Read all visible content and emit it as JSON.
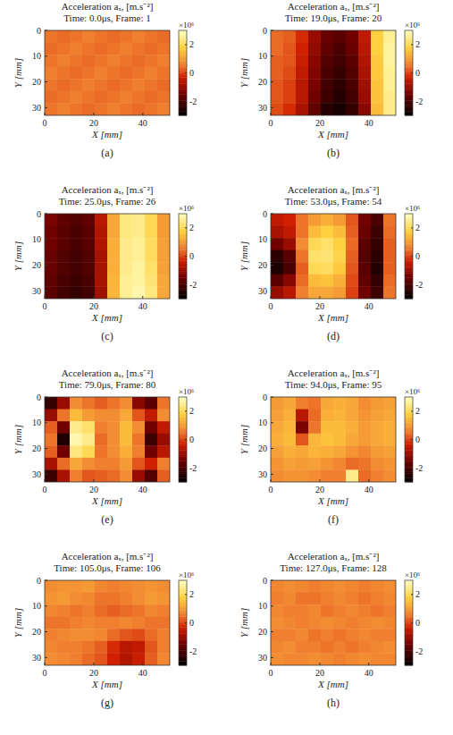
{
  "chart_data": [
    {
      "type": "heatmap",
      "title": "Acceleration aₓ, [m.s⁻²]",
      "subtitle": "Time: 0.0μs, Frame: 1",
      "caption": "(a)",
      "x_label": "X [mm]",
      "y_label": "Y [mm]",
      "xlim": [
        0,
        51
      ],
      "ylim": [
        0,
        33
      ],
      "xticks": [
        0,
        20,
        40
      ],
      "yticks": [
        0,
        10,
        20,
        30
      ],
      "colorbar": {
        "range": [
          -3,
          3
        ],
        "ticks": [
          -2,
          0,
          2
        ],
        "label": "×10⁶"
      },
      "cells": [
        [
          0.5,
          0.4,
          0.5,
          0.6,
          0.5,
          0.4,
          0.5,
          0.6,
          0.5,
          0.4
        ],
        [
          0.4,
          0.5,
          0.6,
          0.5,
          0.4,
          0.5,
          0.6,
          0.5,
          0.4,
          0.5
        ],
        [
          0.5,
          0.6,
          0.5,
          0.4,
          0.5,
          0.6,
          0.5,
          0.4,
          0.5,
          0.6
        ],
        [
          0.6,
          0.5,
          0.4,
          0.5,
          0.6,
          0.5,
          0.4,
          0.5,
          0.6,
          0.5
        ],
        [
          0.5,
          0.4,
          0.5,
          0.6,
          0.5,
          0.4,
          0.5,
          0.6,
          0.5,
          0.4
        ],
        [
          0.4,
          0.5,
          0.6,
          0.5,
          0.4,
          0.5,
          0.6,
          0.5,
          0.4,
          0.5
        ],
        [
          0.5,
          0.6,
          0.5,
          0.4,
          0.5,
          0.6,
          0.5,
          0.4,
          0.5,
          0.6
        ]
      ]
    },
    {
      "type": "heatmap",
      "title": "Acceleration aₓ, [m.s⁻²]",
      "subtitle": "Time: 19.0μs, Frame: 20",
      "caption": "(b)",
      "x_label": "X [mm]",
      "y_label": "Y [mm]",
      "xlim": [
        0,
        51
      ],
      "ylim": [
        0,
        33
      ],
      "xticks": [
        0,
        20,
        40
      ],
      "yticks": [
        0,
        10,
        20,
        30
      ],
      "colorbar": {
        "range": [
          -3,
          3
        ],
        "ticks": [
          -2,
          0,
          2
        ],
        "label": "×10⁶"
      },
      "cells": [
        [
          0.4,
          0.3,
          -0.2,
          -1.0,
          -1.6,
          -1.8,
          -1.5,
          -0.5,
          1.8,
          2.6
        ],
        [
          0.4,
          0.2,
          -0.3,
          -1.1,
          -1.7,
          -2.0,
          -1.6,
          -0.6,
          1.8,
          2.7
        ],
        [
          0.3,
          0.2,
          -0.4,
          -1.2,
          -1.9,
          -2.1,
          -1.8,
          -0.7,
          1.7,
          2.7
        ],
        [
          0.3,
          0.1,
          -0.5,
          -1.3,
          -2.0,
          -2.3,
          -1.9,
          -0.8,
          1.7,
          2.6
        ],
        [
          0.2,
          0.0,
          -0.6,
          -1.4,
          -2.1,
          -2.4,
          -2.0,
          -0.9,
          1.6,
          2.6
        ],
        [
          0.2,
          0.0,
          -0.6,
          -1.5,
          -2.2,
          -2.5,
          -2.1,
          -1.0,
          1.6,
          2.5
        ],
        [
          0.1,
          -0.2,
          -0.8,
          -1.7,
          -2.5,
          -2.7,
          -2.3,
          -1.2,
          1.5,
          2.5
        ]
      ]
    },
    {
      "type": "heatmap",
      "title": "Acceleration aₓ, [m.s⁻²]",
      "subtitle": "Time: 25.0μs, Frame: 26",
      "caption": "(c)",
      "x_label": "X [mm]",
      "y_label": "Y [mm]",
      "xlim": [
        0,
        51
      ],
      "ylim": [
        0,
        33
      ],
      "xticks": [
        0,
        20,
        40
      ],
      "yticks": [
        0,
        10,
        20,
        30
      ],
      "colorbar": {
        "range": [
          -3,
          3
        ],
        "ticks": [
          -2,
          0,
          2
        ],
        "label": "×10⁶"
      },
      "cells": [
        [
          -1.4,
          -1.7,
          -1.9,
          -1.7,
          -0.6,
          1.2,
          2.4,
          2.5,
          2.0,
          1.0
        ],
        [
          -1.5,
          -1.8,
          -2.0,
          -1.8,
          -0.7,
          1.2,
          2.4,
          2.5,
          2.0,
          1.0
        ],
        [
          -1.5,
          -1.8,
          -2.0,
          -1.8,
          -0.7,
          1.3,
          2.5,
          2.6,
          2.1,
          1.1
        ],
        [
          -1.6,
          -1.9,
          -2.1,
          -1.9,
          -0.8,
          1.3,
          2.5,
          2.6,
          2.1,
          1.1
        ],
        [
          -1.6,
          -1.9,
          -2.1,
          -1.9,
          -0.8,
          1.3,
          2.5,
          2.7,
          2.2,
          1.1
        ],
        [
          -1.7,
          -2.0,
          -2.2,
          -2.0,
          -0.8,
          1.4,
          2.6,
          2.7,
          2.3,
          1.2
        ],
        [
          -1.8,
          -2.1,
          -2.3,
          -2.1,
          -0.9,
          1.4,
          2.6,
          2.8,
          2.4,
          1.2
        ]
      ]
    },
    {
      "type": "heatmap",
      "title": "Acceleration aₓ, [m.s⁻²]",
      "subtitle": "Time: 53.0μs, Frame: 54",
      "caption": "(d)",
      "x_label": "X [mm]",
      "y_label": "Y [mm]",
      "xlim": [
        0,
        51
      ],
      "ylim": [
        0,
        33
      ],
      "xticks": [
        0,
        20,
        40
      ],
      "yticks": [
        0,
        10,
        20,
        30
      ],
      "colorbar": {
        "range": [
          -3,
          3
        ],
        "ticks": [
          -2,
          0,
          2
        ],
        "label": "×10⁶"
      },
      "cells": [
        [
          -0.5,
          -0.3,
          0.5,
          1.0,
          1.3,
          1.0,
          0.2,
          -1.5,
          -2.0,
          0.5
        ],
        [
          -0.8,
          -0.5,
          0.5,
          1.5,
          1.8,
          1.5,
          0.3,
          -1.6,
          -2.2,
          0.4
        ],
        [
          -1.5,
          -1.0,
          0.8,
          2.0,
          2.2,
          1.8,
          0.4,
          -1.8,
          -2.3,
          0.3
        ],
        [
          -2.4,
          -1.8,
          0.5,
          2.2,
          2.3,
          1.9,
          0.3,
          -1.9,
          -2.4,
          0.3
        ],
        [
          -2.6,
          -2.0,
          0.3,
          2.0,
          2.1,
          1.7,
          0.2,
          -1.8,
          -2.5,
          0.3
        ],
        [
          -1.8,
          -1.2,
          0.4,
          1.5,
          1.6,
          1.3,
          0.1,
          -1.7,
          -2.3,
          0.4
        ],
        [
          -1.0,
          -0.6,
          0.6,
          1.2,
          1.2,
          1.0,
          0.0,
          -1.5,
          -2.2,
          0.5
        ]
      ]
    },
    {
      "type": "heatmap",
      "title": "Acceleration aₓ, [m.s⁻²]",
      "subtitle": "Time: 79.0μs, Frame: 80",
      "caption": "(e)",
      "x_label": "X [mm]",
      "y_label": "Y [mm]",
      "xlim": [
        0,
        51
      ],
      "ylim": [
        0,
        33
      ],
      "xticks": [
        0,
        20,
        40
      ],
      "yticks": [
        0,
        10,
        20,
        30
      ],
      "colorbar": {
        "range": [
          -3,
          3
        ],
        "ticks": [
          -2,
          0,
          2
        ],
        "label": "×10⁶"
      },
      "cells": [
        [
          -2.3,
          -1.0,
          0.8,
          0.5,
          0.3,
          0.5,
          0.8,
          -1.2,
          -1.8,
          0.5
        ],
        [
          -1.0,
          0.5,
          1.5,
          1.0,
          0.8,
          0.8,
          1.2,
          0.2,
          -0.5,
          0.8
        ],
        [
          0.3,
          -1.5,
          2.5,
          2.2,
          0.6,
          0.8,
          1.5,
          0.8,
          -1.5,
          -0.5
        ],
        [
          0.5,
          -2.6,
          2.8,
          2.5,
          0.4,
          0.8,
          1.5,
          0.5,
          -2.2,
          -1.0
        ],
        [
          0.3,
          -1.5,
          2.4,
          2.0,
          0.5,
          0.8,
          1.3,
          0.6,
          -1.5,
          -0.6
        ],
        [
          -0.8,
          0.4,
          1.2,
          0.8,
          0.6,
          0.6,
          1.0,
          0.2,
          -0.3,
          0.6
        ],
        [
          -2.2,
          -0.8,
          0.6,
          0.2,
          0.3,
          0.4,
          0.8,
          -1.0,
          -1.9,
          0.3
        ]
      ]
    },
    {
      "type": "heatmap",
      "title": "Acceleration aₓ, [m.s⁻²]",
      "subtitle": "Time: 94.0μs, Frame: 95",
      "caption": "(f)",
      "x_label": "X [mm]",
      "y_label": "Y [mm]",
      "xlim": [
        0,
        51
      ],
      "ylim": [
        0,
        33
      ],
      "xticks": [
        0,
        20,
        40
      ],
      "yticks": [
        0,
        10,
        20,
        30
      ],
      "colorbar": {
        "range": [
          -3,
          3
        ],
        "ticks": [
          -2,
          0,
          2
        ],
        "label": "×10⁶"
      },
      "cells": [
        [
          1.0,
          1.2,
          0.6,
          0.5,
          1.2,
          1.3,
          1.2,
          0.8,
          1.0,
          1.1
        ],
        [
          1.1,
          1.3,
          -0.6,
          0.4,
          1.3,
          1.4,
          1.2,
          0.9,
          1.1,
          1.2
        ],
        [
          1.2,
          1.4,
          -1.4,
          0.5,
          1.5,
          1.5,
          1.3,
          1.0,
          1.2,
          1.3
        ],
        [
          1.3,
          1.5,
          0.2,
          1.4,
          1.6,
          1.5,
          1.2,
          1.0,
          1.2,
          1.3
        ],
        [
          1.1,
          1.3,
          1.2,
          1.4,
          1.3,
          1.2,
          0.9,
          0.7,
          1.0,
          1.1
        ],
        [
          0.9,
          1.1,
          1.0,
          1.1,
          0.9,
          0.7,
          0.4,
          0.5,
          0.8,
          0.9
        ],
        [
          0.8,
          0.9,
          0.9,
          0.8,
          0.6,
          0.6,
          2.5,
          0.4,
          0.6,
          0.8
        ]
      ]
    },
    {
      "type": "heatmap",
      "title": "Acceleration aₓ, [m.s⁻²]",
      "subtitle": "Time: 105.0μs, Frame: 106",
      "caption": "(g)",
      "x_label": "X [mm]",
      "y_label": "Y [mm]",
      "xlim": [
        0,
        51
      ],
      "ylim": [
        0,
        33
      ],
      "xticks": [
        0,
        20,
        40
      ],
      "yticks": [
        0,
        10,
        20,
        30
      ],
      "colorbar": {
        "range": [
          -3,
          3
        ],
        "ticks": [
          -2,
          0,
          2
        ],
        "label": "×10⁶"
      },
      "cells": [
        [
          0.8,
          0.9,
          0.9,
          1.0,
          0.7,
          0.6,
          0.7,
          0.8,
          0.9,
          0.8
        ],
        [
          0.9,
          1.0,
          0.8,
          0.7,
          0.5,
          0.5,
          0.6,
          0.8,
          1.0,
          0.9
        ],
        [
          0.7,
          0.6,
          0.5,
          0.6,
          0.4,
          0.3,
          0.4,
          0.5,
          0.7,
          0.6
        ],
        [
          0.5,
          0.5,
          0.6,
          0.7,
          0.6,
          0.6,
          0.7,
          0.6,
          0.5,
          0.5
        ],
        [
          0.6,
          0.7,
          0.8,
          0.8,
          0.7,
          0.4,
          0.2,
          0.1,
          0.4,
          0.6
        ],
        [
          0.7,
          0.6,
          0.6,
          0.5,
          0.3,
          -0.2,
          -0.6,
          -0.5,
          0.2,
          0.6
        ],
        [
          0.8,
          0.7,
          0.6,
          0.4,
          0.2,
          -0.3,
          -0.7,
          -0.4,
          0.3,
          0.7
        ]
      ]
    },
    {
      "type": "heatmap",
      "title": "Acceleration aₓ, [m.s⁻²]",
      "subtitle": "Time: 127.0μs, Frame: 128",
      "caption": "(h)",
      "x_label": "X [mm]",
      "y_label": "Y [mm]",
      "xlim": [
        0,
        51
      ],
      "ylim": [
        0,
        33
      ],
      "xticks": [
        0,
        20,
        40
      ],
      "yticks": [
        0,
        10,
        20,
        30
      ],
      "colorbar": {
        "range": [
          -3,
          3
        ],
        "ticks": [
          -2,
          0,
          2
        ],
        "label": "×10⁶"
      },
      "cells": [
        [
          0.7,
          0.8,
          0.7,
          0.6,
          0.7,
          0.8,
          0.7,
          0.6,
          0.7,
          0.8
        ],
        [
          0.6,
          0.7,
          0.5,
          0.5,
          0.6,
          0.7,
          0.6,
          0.5,
          0.6,
          0.7
        ],
        [
          0.7,
          0.6,
          0.6,
          0.7,
          0.5,
          0.6,
          0.7,
          0.6,
          0.5,
          0.6
        ],
        [
          0.8,
          0.7,
          0.6,
          0.7,
          0.8,
          0.7,
          0.6,
          0.7,
          0.8,
          0.7
        ],
        [
          0.6,
          0.6,
          0.7,
          0.5,
          0.6,
          0.5,
          0.6,
          0.7,
          0.6,
          0.6
        ],
        [
          0.7,
          0.8,
          0.6,
          0.6,
          0.5,
          0.6,
          0.5,
          0.6,
          0.7,
          0.8
        ],
        [
          0.8,
          0.7,
          0.7,
          0.8,
          0.7,
          0.6,
          0.7,
          0.8,
          0.7,
          0.7
        ]
      ]
    }
  ]
}
